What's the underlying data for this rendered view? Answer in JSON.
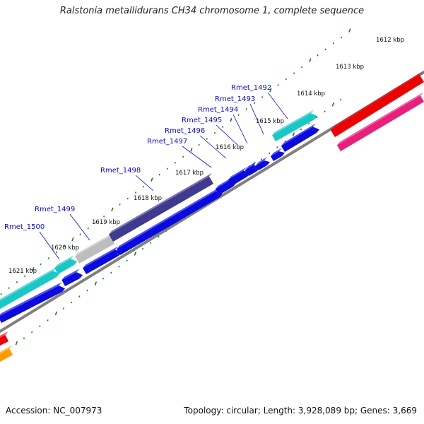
{
  "title": "Ralstonia metallidurans CH34 chromosome 1, complete sequence",
  "accession_text": "Accession: NC_007973",
  "topology_text": "Topology: circular; Length: 3,928,089 bp; Genes: 3,669",
  "colors": {
    "backbone": "#7f7f7f",
    "tick": "#1e7a1e",
    "label": "#0b0bbf",
    "gene_blue": "#0a0adf",
    "gene_cyan": "#19c7c7",
    "gene_navy": "#3f3a8f",
    "gene_gray": "#bdbdbd",
    "gene_red": "#ee0000",
    "gene_pink": "#e8207a",
    "gene_orange": "#ff9a00"
  },
  "scale_ticks": [
    "1612 kbp",
    "1613 kbp",
    "1614 kbp",
    "1615 kbp",
    "1616 kbp",
    "1617 kbp",
    "1618 kbp",
    "1619 kbp",
    "1620 kbp",
    "1621 kbp"
  ],
  "gene_labels": [
    "Rmet_1492",
    "Rmet_1493",
    "Rmet_1494",
    "Rmet_1495",
    "Rmet_1496",
    "Rmet_1497",
    "Rmet_1498",
    "Rmet_1499",
    "Rmet_1500"
  ]
}
